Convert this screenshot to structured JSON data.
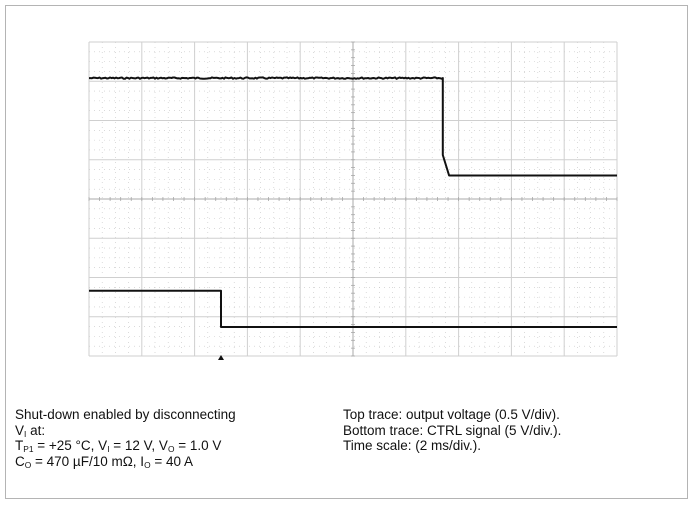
{
  "chart_data": {
    "type": "line",
    "title": "",
    "xlabel": "",
    "ylabel": "",
    "grid": true,
    "x_divisions": 10,
    "y_divisions": 8,
    "xlim": [
      0,
      10
    ],
    "ylim": [
      0,
      8
    ],
    "trigger_marker_x": 2.5,
    "series": [
      {
        "x": [
          0,
          6.7,
          6.7,
          6.82,
          10
        ],
        "y": [
          7.08,
          7.08,
          5.12,
          4.6,
          4.6
        ],
        "noisy_until_x": 6.7
      },
      {
        "x": [
          0,
          2.5,
          2.5,
          10
        ],
        "y": [
          1.66,
          1.66,
          0.74,
          0.74
        ],
        "noisy_until_x": 0
      }
    ],
    "colors": {
      "trace": "#111111",
      "grid": "#cfcfcf",
      "dotted": "#c4c4c4",
      "axis": "#a8a8a8",
      "frame": "#b4b4b4"
    }
  },
  "caption_left": {
    "line1": "Shut-down enabled by disconnecting",
    "line2_a": "V",
    "line2_sub": "I",
    "line2_b": " at:",
    "line3_a": "T",
    "line3_sub1": "P1",
    "line3_b": " = +25 °C, V",
    "line3_sub2": "I",
    "line3_c": " = 12 V, V",
    "line3_sub3": "O",
    "line3_d": " = 1.0 V",
    "line4_a": "C",
    "line4_sub1": "O",
    "line4_b": " = 470 µF/10 mΩ, I",
    "line4_sub2": "O",
    "line4_c": " = 40 A"
  },
  "caption_right": {
    "line1": "Top trace: output voltage (0.5 V/div).",
    "line2": "Bottom trace: CTRL signal (5 V/div.).",
    "line3": "Time scale: (2 ms/div.)."
  }
}
